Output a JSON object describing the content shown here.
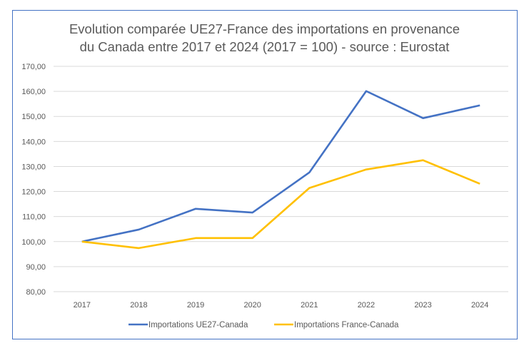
{
  "chart_data": {
    "type": "line",
    "title": "Evolution comparée UE27-France des importations en provenance du Canada entre 2017 et 2024 (2017 = 100) - source : Eurostat",
    "title_lines": [
      "Evolution comparée UE27-France des importations en provenance",
      "du Canada entre 2017 et 2024 (2017 = 100) - source : Eurostat"
    ],
    "xlabel": "",
    "ylabel": "",
    "categories": [
      "2017",
      "2018",
      "2019",
      "2020",
      "2021",
      "2022",
      "2023",
      "2024"
    ],
    "ylim": [
      80,
      170
    ],
    "yticks": [
      80,
      90,
      100,
      110,
      120,
      130,
      140,
      150,
      160,
      170
    ],
    "ytick_labels": [
      "80,00",
      "90,00",
      "100,00",
      "110,00",
      "120,00",
      "130,00",
      "140,00",
      "150,00",
      "160,00",
      "170,00"
    ],
    "grid": true,
    "legend_position": "bottom",
    "series": [
      {
        "name": "Importations UE27-Canada",
        "color": "#4472c4",
        "values": [
          100.0,
          104.8,
          113.1,
          111.6,
          127.6,
          160.1,
          149.3,
          154.4
        ]
      },
      {
        "name": "Importations France-Canada",
        "color": "#ffc000",
        "values": [
          100.0,
          97.4,
          101.4,
          101.4,
          121.4,
          128.8,
          132.5,
          123.1
        ]
      }
    ]
  }
}
